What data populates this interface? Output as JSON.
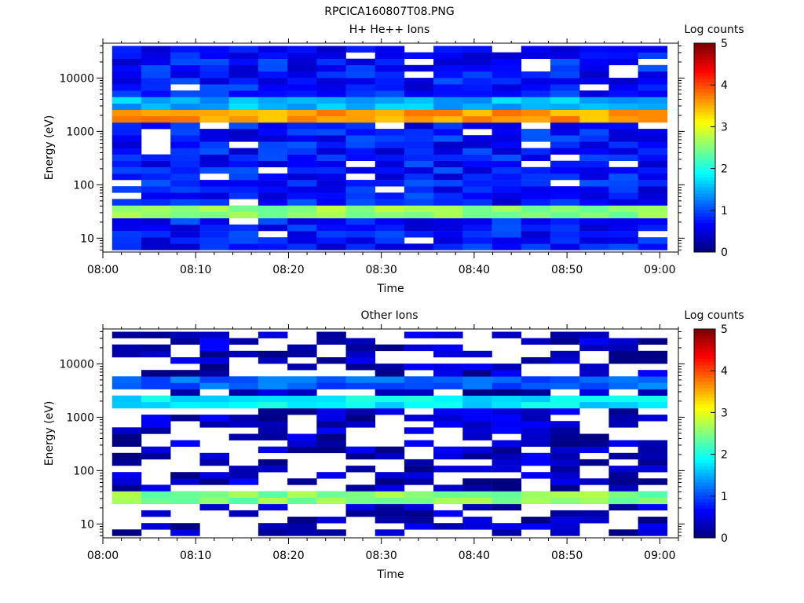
{
  "figure_title": "RPCICA160807T08.PNG",
  "chart_data": [
    {
      "type": "heatmap",
      "title": "H+ He++ Ions",
      "xlabel": "Time",
      "ylabel": "Energy (eV)",
      "x_ticks": [
        "08:00",
        "08:10",
        "08:20",
        "08:30",
        "08:40",
        "08:50",
        "09:00"
      ],
      "y_ticks": [
        "10",
        "100",
        "1000",
        "10000"
      ],
      "y_scale": "log",
      "ylim": [
        5.5,
        45000
      ],
      "xlim": [
        "08:00",
        "09:02"
      ],
      "time_bins": 19,
      "energy_bins": 32,
      "colorbar": {
        "label": "Log counts",
        "ticks": [
          "0",
          "1",
          "2",
          "3",
          "4",
          "5"
        ],
        "range": [
          0,
          5
        ],
        "colormap": "jet"
      },
      "bands": [
        {
          "energy_eV": 2000,
          "level": 3.6
        },
        {
          "energy_eV": 30,
          "level": 2.6
        },
        {
          "energy_eV": 3800,
          "level": 1.5
        }
      ],
      "background_level": 0.7,
      "gap_fraction": 0.08
    },
    {
      "type": "heatmap",
      "title": "Other Ions",
      "xlabel": "Time",
      "ylabel": "Energy (eV)",
      "x_ticks": [
        "08:00",
        "08:10",
        "08:20",
        "08:30",
        "08:40",
        "08:50",
        "09:00"
      ],
      "y_ticks": [
        "10",
        "100",
        "1000",
        "10000"
      ],
      "y_scale": "log",
      "ylim": [
        5.5,
        45000
      ],
      "xlim": [
        "08:00",
        "09:02"
      ],
      "time_bins": 19,
      "energy_bins": 32,
      "colorbar": {
        "label": "Log counts",
        "ticks": [
          "0",
          "1",
          "2",
          "3",
          "4",
          "5"
        ],
        "range": [
          0,
          5
        ],
        "colormap": "jet"
      },
      "bands": [
        {
          "energy_eV": 2000,
          "level": 1.8
        },
        {
          "energy_eV": 30,
          "level": 2.5
        },
        {
          "energy_eV": 4200,
          "level": 1.1
        }
      ],
      "background_level": 0.3,
      "gap_fraction": 0.45
    }
  ]
}
